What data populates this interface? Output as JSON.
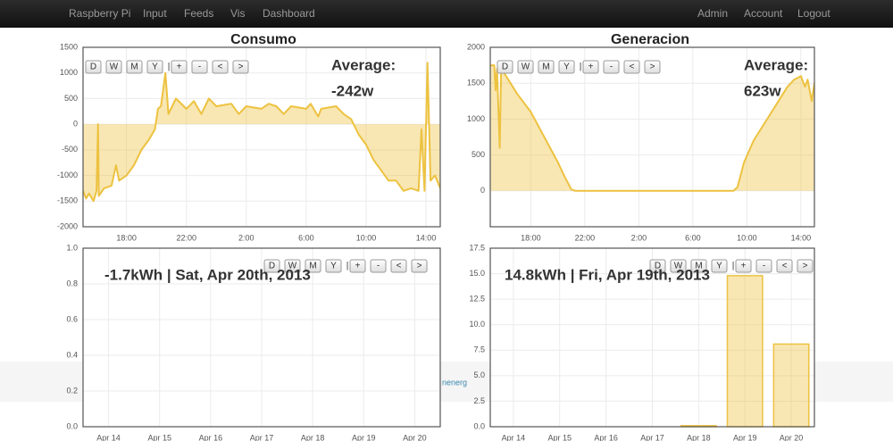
{
  "navbar": {
    "left_links": [
      "Raspberry Pi",
      "Input",
      "Feeds",
      "Vis",
      "Dashboard"
    ],
    "right_links": [
      "Admin",
      "Account",
      "Logout"
    ]
  },
  "footer_text": "nenerg",
  "chart_data": [
    {
      "type": "area",
      "title": "Consumo",
      "color": "#edc240",
      "buttons": [
        "D",
        "W",
        "M",
        "Y",
        "|",
        "+",
        "-",
        "<",
        ">"
      ],
      "annotations": [
        "Average:",
        "-242w"
      ],
      "xlim": [
        15.1,
        38.95
      ],
      "ylim": [
        -2000,
        1500
      ],
      "xticks": [
        {
          "value": 18,
          "label": "18:00"
        },
        {
          "value": 22,
          "label": "22:00"
        },
        {
          "value": 26,
          "label": "2:00"
        },
        {
          "value": 30,
          "label": "6:00"
        },
        {
          "value": 34,
          "label": "10:00"
        },
        {
          "value": 38,
          "label": "14:00"
        }
      ],
      "yticks": [
        -2000,
        -1500,
        -1000,
        -500,
        0,
        500,
        1000,
        1500
      ],
      "x": [
        15.1,
        15.3,
        15.5,
        15.8,
        16,
        16.1,
        16.15,
        16.5,
        17,
        17.3,
        17.5,
        18,
        18.5,
        19,
        19.5,
        19.9,
        20.1,
        20.3,
        20.6,
        20.8,
        21.3,
        22,
        22.5,
        23,
        23.5,
        24,
        25,
        25.5,
        26,
        27,
        27.5,
        28,
        28.5,
        29,
        30,
        30.3,
        30.8,
        31,
        32,
        32.5,
        33,
        33.5,
        34,
        34.5,
        35,
        35.5,
        36,
        36.5,
        37,
        37.5,
        37.7,
        37.9,
        38.1,
        38.3,
        38.6,
        38.95
      ],
      "values": [
        -1300,
        -1450,
        -1350,
        -1500,
        -1300,
        0,
        -1400,
        -1250,
        -1200,
        -800,
        -1100,
        -1000,
        -800,
        -500,
        -300,
        -100,
        300,
        350,
        1000,
        200,
        500,
        300,
        450,
        200,
        500,
        350,
        400,
        200,
        350,
        300,
        400,
        350,
        200,
        350,
        300,
        400,
        150,
        300,
        350,
        200,
        100,
        -200,
        -400,
        -700,
        -900,
        -1100,
        -1100,
        -1300,
        -1250,
        -1300,
        -100,
        -1300,
        1200,
        -1100,
        -1000,
        -1250
      ]
    },
    {
      "type": "area",
      "title": "Generacion",
      "color": "#edc240",
      "buttons": [
        "D",
        "W",
        "M",
        "Y",
        "|",
        "+",
        "-",
        "<",
        ">"
      ],
      "annotations": [
        "Average:",
        "623w"
      ],
      "xlim": [
        15,
        39
      ],
      "ylim": [
        -500,
        2000
      ],
      "xticks": [
        {
          "value": 18,
          "label": "18:00"
        },
        {
          "value": 22,
          "label": "22:00"
        },
        {
          "value": 26,
          "label": "2:00"
        },
        {
          "value": 30,
          "label": "6:00"
        },
        {
          "value": 34,
          "label": "10:00"
        },
        {
          "value": 38,
          "label": "14:00"
        }
      ],
      "yticks": [
        0,
        500,
        1000,
        1500,
        2000
      ],
      "x": [
        15,
        15.3,
        15.4,
        15.5,
        15.7,
        15.8,
        16,
        16.5,
        17,
        18,
        19,
        20,
        20.5,
        21,
        21.3,
        33,
        33.3,
        33.8,
        34.5,
        35.5,
        36.5,
        37,
        37.5,
        38,
        38.3,
        38.5,
        38.8,
        39
      ],
      "values": [
        1750,
        1750,
        1400,
        1700,
        600,
        1650,
        1650,
        1500,
        1350,
        1100,
        750,
        400,
        200,
        20,
        0,
        0,
        50,
        400,
        700,
        1000,
        1300,
        1450,
        1550,
        1600,
        1450,
        1550,
        1250,
        1500
      ]
    },
    {
      "type": "bar",
      "color": "#edc240",
      "buttons": [
        "D",
        "W",
        "M",
        "Y",
        "|",
        "+",
        "-",
        "<",
        ">"
      ],
      "annotations": [
        "-1.7kWh | Sat, Apr 20th, 2013"
      ],
      "categories": [
        "Apr 14",
        "Apr 15",
        "Apr 16",
        "Apr 17",
        "Apr 18",
        "Apr 19",
        "Apr 20"
      ],
      "ylim": [
        0,
        1
      ],
      "yticks": [
        {
          "value": 0,
          "label": "0.0"
        },
        0.2,
        0.4,
        0.6,
        0.8,
        {
          "value": 1,
          "label": "1.0"
        }
      ]
    },
    {
      "type": "bar",
      "color": "#edc240",
      "buttons": [
        "D",
        "W",
        "M",
        "Y",
        "|",
        "+",
        "-",
        "<",
        ">"
      ],
      "annotations": [
        "14.8kWh | Fri, Apr 19th, 2013"
      ],
      "categories": [
        "Apr 14",
        "Apr 15",
        "Apr 16",
        "Apr 17",
        "Apr 18",
        "Apr 19",
        "Apr 20"
      ],
      "values": [
        0,
        0,
        0,
        0,
        0.1,
        14.8,
        8.1
      ],
      "ylim": [
        0,
        17.5
      ],
      "yticks": [
        {
          "value": 0,
          "label": "0.0"
        },
        2.5,
        {
          "value": 5,
          "label": "5.0"
        },
        7.5,
        {
          "value": 10,
          "label": "10.0"
        },
        12.5,
        {
          "value": 15,
          "label": "15.0"
        },
        17.5
      ]
    }
  ]
}
